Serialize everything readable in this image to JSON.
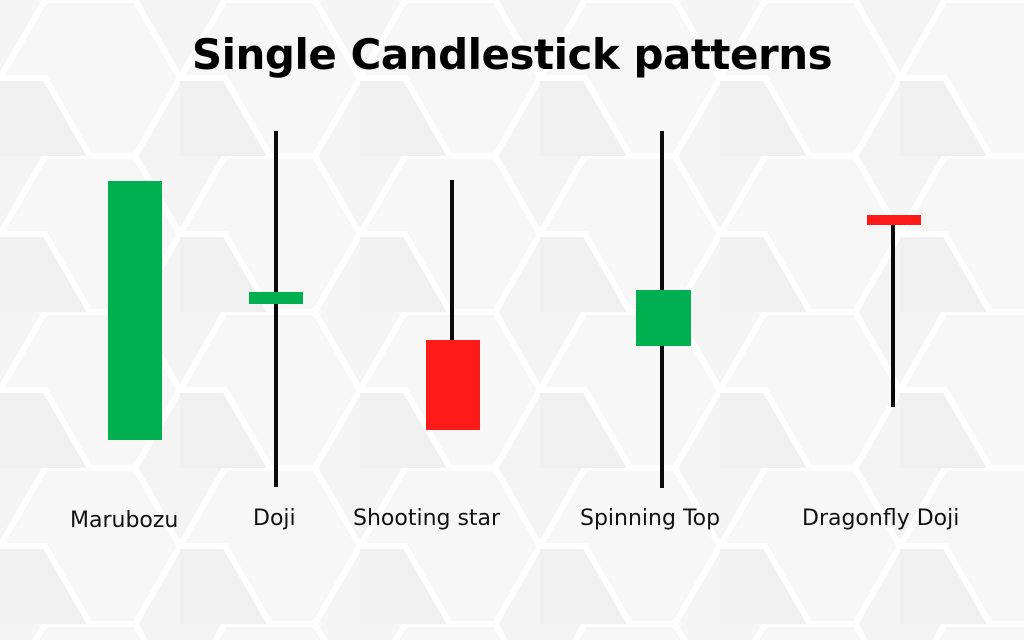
{
  "title": "Single Candlestick patterns",
  "colors": {
    "bullish": "#00b050",
    "bearish": "#ff1a1a",
    "wick": "#0a0a0a",
    "background": "#f4f4f5"
  },
  "patterns": [
    {
      "label": "Marubozu",
      "direction": "bullish"
    },
    {
      "label": "Doji",
      "direction": "bullish"
    },
    {
      "label": "Shooting star",
      "direction": "bearish"
    },
    {
      "label": "Spinning Top",
      "direction": "bullish"
    },
    {
      "label": "Dragonfly Doji",
      "direction": "bearish"
    }
  ]
}
